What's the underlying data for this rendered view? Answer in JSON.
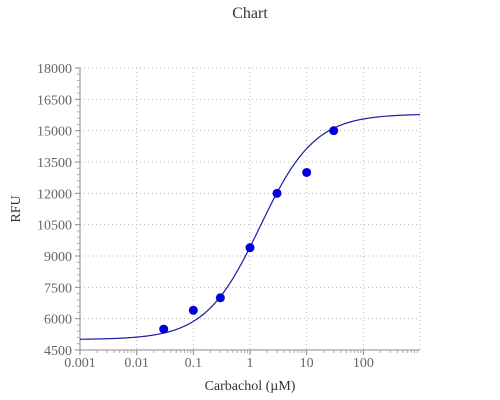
{
  "chart_data": {
    "type": "scatter",
    "title": "Chart",
    "xlabel": "Carbachol (µM)",
    "ylabel": "RFU",
    "x_scale": "log",
    "xlim": [
      0.001,
      1000
    ],
    "ylim": [
      4500,
      18000
    ],
    "x_ticks": [
      0.001,
      0.01,
      0.1,
      1,
      10,
      100
    ],
    "x_tick_labels": [
      "0.001",
      "0.01",
      "0.1",
      "1",
      "10",
      "100"
    ],
    "y_ticks": [
      4500,
      6000,
      7500,
      9000,
      10500,
      12000,
      13500,
      15000,
      16500,
      18000
    ],
    "y_tick_labels": [
      "4500",
      "6000",
      "7500",
      "9000",
      "10500",
      "12000",
      "13500",
      "15000",
      "16500",
      "18000"
    ],
    "grid": true,
    "series": [
      {
        "type": "scatter",
        "x": [
          0.03,
          0.1,
          0.3,
          1,
          3,
          10,
          30
        ],
        "y": [
          5500,
          6400,
          7000,
          9400,
          12000,
          13000,
          15000
        ],
        "color": "#0000dd"
      },
      {
        "type": "line",
        "curve": "sigmoid",
        "bottom": 5000,
        "top": 15800,
        "ec50": 1.5,
        "hill": 0.9,
        "color": "#1a1aa6"
      }
    ]
  }
}
